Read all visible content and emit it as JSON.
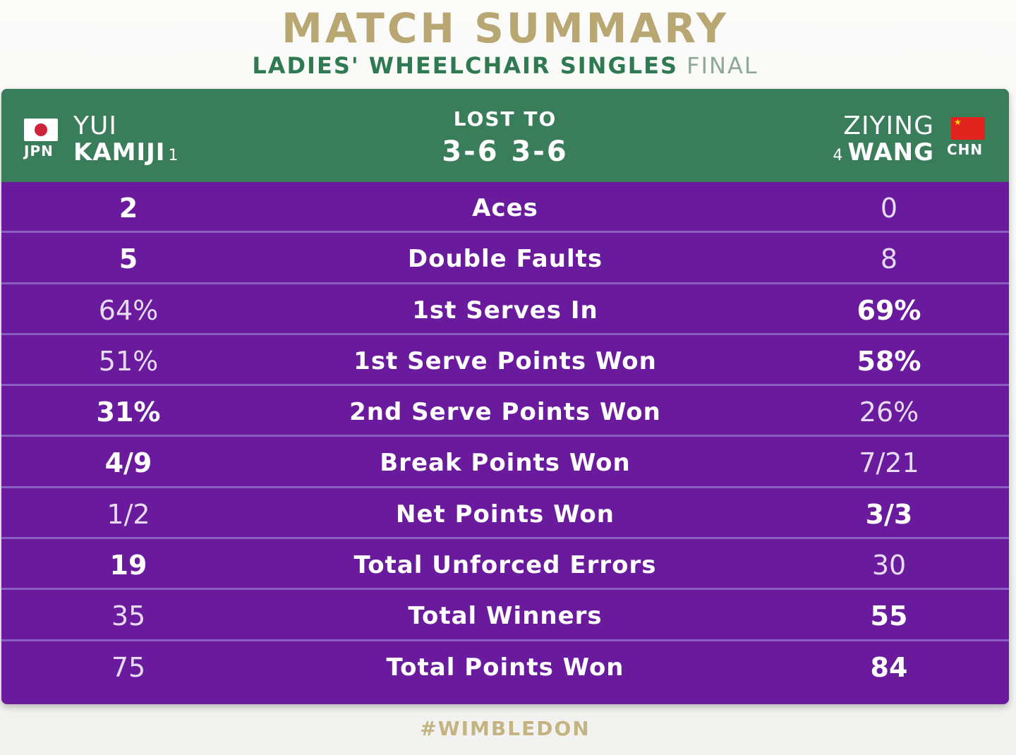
{
  "title": "MATCH SUMMARY",
  "subtitle": {
    "event": "LADIES' WHEELCHAIR SINGLES",
    "round": "FINAL"
  },
  "colors": {
    "header_green": "#3a7d5a",
    "row_purple": "#6a1a9c",
    "gold": "#b8a673",
    "subtitle_green": "#2f7a52"
  },
  "player1": {
    "first_name": "YUI",
    "last_name": "KAMIJI",
    "seed": "1",
    "country": "JPN",
    "flag_icon": "japan-flag-icon"
  },
  "player2": {
    "first_name": "ZIYING",
    "last_name": "WANG",
    "seed": "4",
    "country": "CHN",
    "flag_icon": "china-flag-icon"
  },
  "result": {
    "label": "LOST TO",
    "score": "3-6 3-6"
  },
  "stats": [
    {
      "label": "Aces",
      "p1": "2",
      "p2": "0",
      "p1_bold": true,
      "p2_bold": false
    },
    {
      "label": "Double Faults",
      "p1": "5",
      "p2": "8",
      "p1_bold": true,
      "p2_bold": false
    },
    {
      "label": "1st Serves In",
      "p1": "64%",
      "p2": "69%",
      "p1_bold": false,
      "p2_bold": true
    },
    {
      "label": "1st Serve Points Won",
      "p1": "51%",
      "p2": "58%",
      "p1_bold": false,
      "p2_bold": true
    },
    {
      "label": "2nd Serve Points Won",
      "p1": "31%",
      "p2": "26%",
      "p1_bold": true,
      "p2_bold": false
    },
    {
      "label": "Break Points Won",
      "p1": "4/9",
      "p2": "7/21",
      "p1_bold": true,
      "p2_bold": false
    },
    {
      "label": "Net Points Won",
      "p1": "1/2",
      "p2": "3/3",
      "p1_bold": false,
      "p2_bold": true
    },
    {
      "label": "Total Unforced Errors",
      "p1": "19",
      "p2": "30",
      "p1_bold": true,
      "p2_bold": false
    },
    {
      "label": "Total Winners",
      "p1": "35",
      "p2": "55",
      "p1_bold": false,
      "p2_bold": true
    },
    {
      "label": "Total Points Won",
      "p1": "75",
      "p2": "84",
      "p1_bold": false,
      "p2_bold": true
    }
  ],
  "footer": "#WIMBLEDON"
}
